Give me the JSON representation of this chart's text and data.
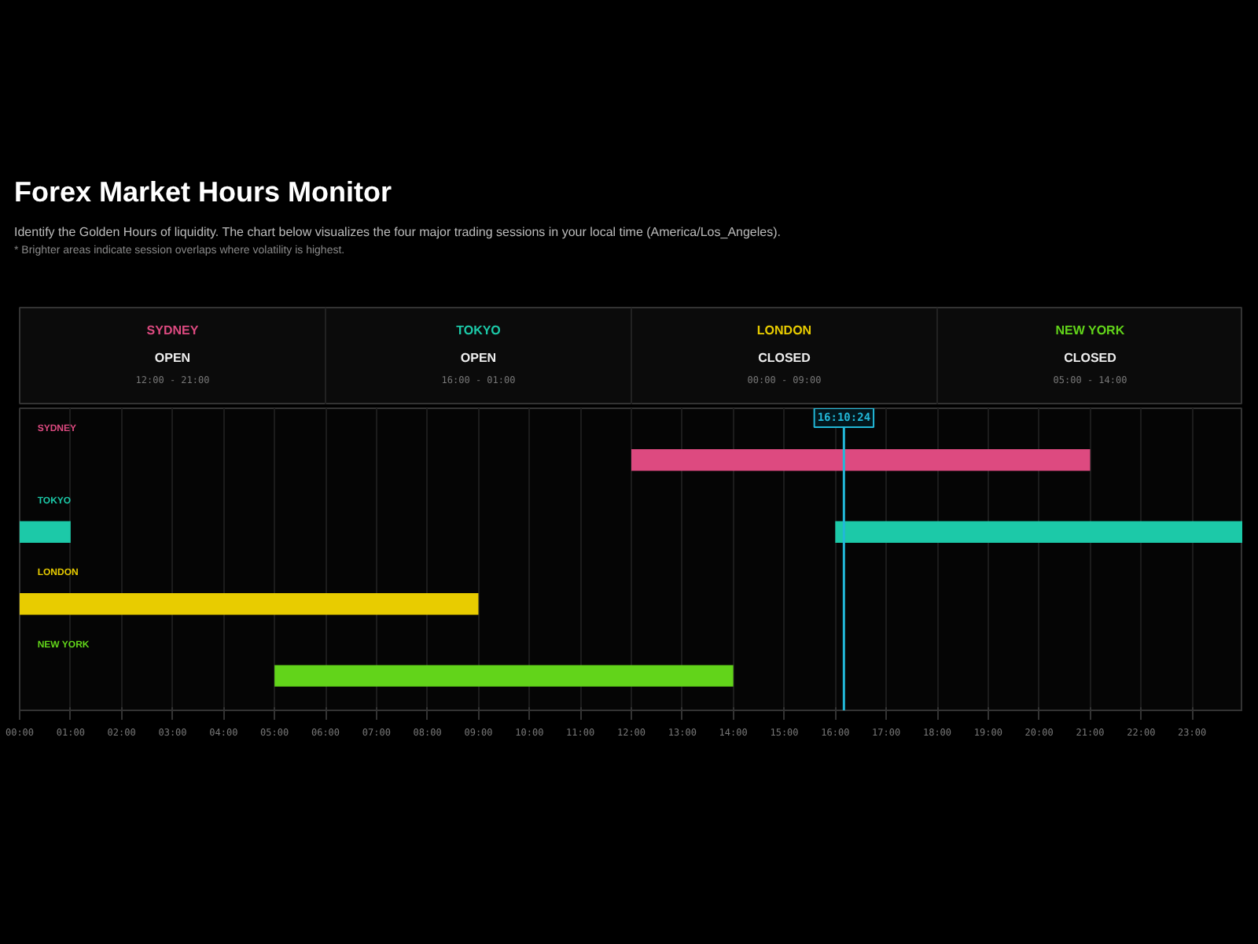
{
  "chart_data": {
    "type": "bar",
    "orientation": "horizontal",
    "title": "Forex Market Hours Monitor",
    "subtitle": "Identify the Golden Hours of liquidity. The chart below visualizes the four major trading sessions in your local time (America/Los_Angeles).",
    "annotations": [
      "* Brighter areas indicate session overlaps where volatility is highest.",
      "OPEN",
      "12:00 - 21:00",
      "OPEN",
      "16:00 - 01:00",
      "CLOSED",
      "00:00 - 09:00",
      "CLOSED",
      "05:00 - 14:00"
    ],
    "categories": [
      "SYDNEY",
      "TOKYO",
      "LONDON",
      "NEW YORK"
    ],
    "series": [
      {
        "colors": [
          "#dd4a80",
          "#1cc9a8",
          "#e8cc00",
          "#62d41a"
        ],
        "values": [
          9,
          8,
          9,
          9
        ],
        "base": [
          12,
          16,
          0,
          5
        ]
      },
      {
        "colors": [
          "#dd4a80",
          "#1cc9a8",
          "#e8cc00",
          "#62d41a"
        ],
        "values": [
          null,
          1,
          null,
          null
        ],
        "base": [
          null,
          0,
          null,
          null
        ]
      }
    ],
    "xlim": [
      0,
      24
    ],
    "xticks": [
      {
        "value": 0,
        "label": "00:00"
      },
      {
        "value": 1,
        "label": "01:00"
      },
      {
        "value": 2,
        "label": "02:00"
      },
      {
        "value": 3,
        "label": "03:00"
      },
      {
        "value": 4,
        "label": "04:00"
      },
      {
        "value": 5,
        "label": "05:00"
      },
      {
        "value": 6,
        "label": "06:00"
      },
      {
        "value": 7,
        "label": "07:00"
      },
      {
        "value": 8,
        "label": "08:00"
      },
      {
        "value": 9,
        "label": "09:00"
      },
      {
        "value": 10,
        "label": "10:00"
      },
      {
        "value": 11,
        "label": "11:00"
      },
      {
        "value": 12,
        "label": "12:00"
      },
      {
        "value": 13,
        "label": "13:00"
      },
      {
        "value": 14,
        "label": "14:00"
      },
      {
        "value": 15,
        "label": "15:00"
      },
      {
        "value": 16,
        "label": "16:00"
      },
      {
        "value": 17,
        "label": "17:00"
      },
      {
        "value": 18,
        "label": "18:00"
      },
      {
        "value": 19,
        "label": "19:00"
      },
      {
        "value": 20,
        "label": "20:00"
      },
      {
        "value": 21,
        "label": "21:00"
      },
      {
        "value": 22,
        "label": "22:00"
      },
      {
        "value": 23,
        "label": "23:00"
      }
    ],
    "ref_lines": [
      {
        "axis": "x",
        "value": 16.17,
        "label": "16:10:24",
        "color": "#22b8d8"
      }
    ],
    "grid": "x"
  }
}
